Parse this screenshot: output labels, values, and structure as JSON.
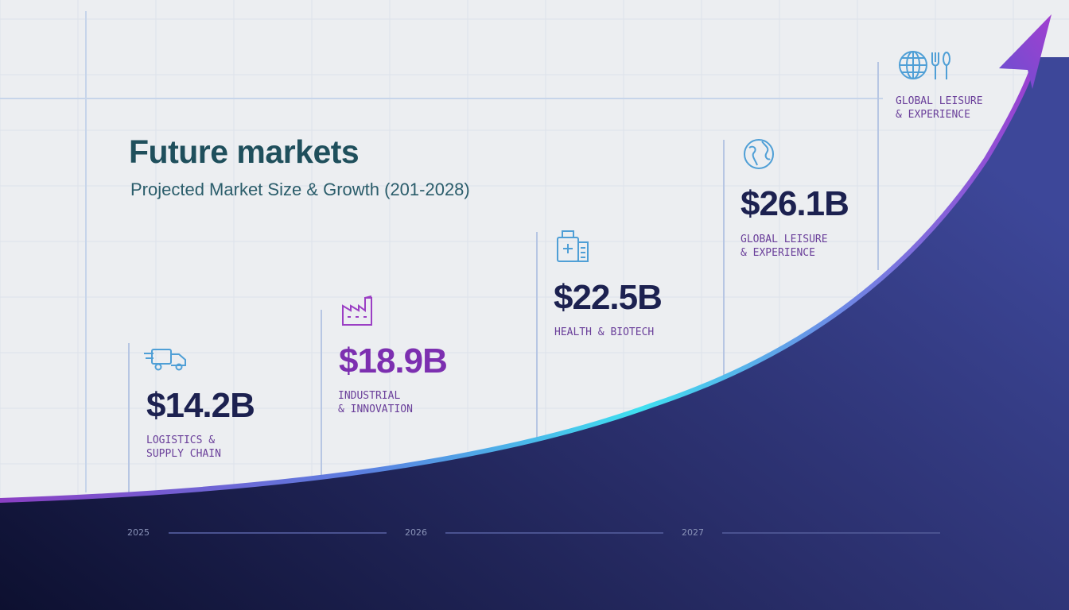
{
  "header": {
    "title": "Future markets",
    "subtitle": "Projected Market Size & Growth (201-2028)"
  },
  "colors": {
    "navy": "#1c2150",
    "purple": "#7c2fb0",
    "label": "#6a3f9a",
    "icon": "#4f9fd6",
    "curve_start": "#8b3fc4",
    "curve_mid": "#3fd6f0",
    "curve_end": "#9a3fd0"
  },
  "chart_data": {
    "type": "area",
    "title": "Future markets",
    "subtitle": "Projected Market Size & Growth (201-2028)",
    "unit": "USD billions",
    "x_tick_labels": [
      "2025",
      "2026",
      "2027"
    ],
    "markets": [
      {
        "id": "logistics",
        "value": 14.2,
        "value_label": "$14.2B",
        "label": "LOGISTICS &\nSUPPLY CHAIN",
        "icon": "truck-icon"
      },
      {
        "id": "industrial",
        "value": 18.9,
        "value_label": "$18.9B",
        "label": "INDUSTRIAL\n& INNOVATION",
        "icon": "factory-icon"
      },
      {
        "id": "health",
        "value": 22.5,
        "value_label": "$22.5B",
        "label": "HEALTH & BIOTECH",
        "icon": "medical-building-icon"
      },
      {
        "id": "leisure",
        "value": 26.1,
        "value_label": "$26.1B",
        "label": "GLOBAL LEISURE\n& EXPERIENCE",
        "icon": "globe-icon"
      },
      {
        "id": "leisure-top",
        "value": null,
        "value_label": "",
        "label": "GLOBAL LEISURE\n& EXPERIENCE",
        "icon": "globe-fork-spoon-icon"
      }
    ],
    "grid": true,
    "legend": "none"
  }
}
